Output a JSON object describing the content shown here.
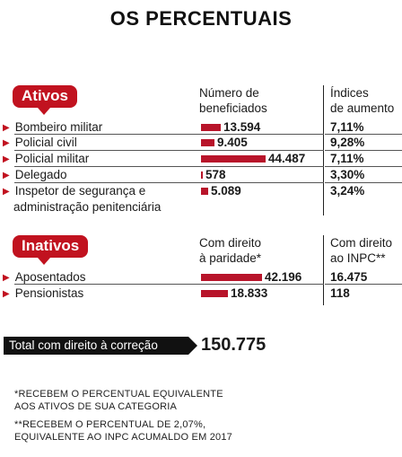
{
  "title": "OS PERCENTUAIS",
  "ativos": {
    "badge": "Ativos",
    "header_beneficiados": [
      "Número de",
      "beneficiados"
    ],
    "header_indices": [
      "Índices",
      "de aumento"
    ],
    "rows": [
      {
        "label": "Bombeiro militar",
        "value": 13594,
        "value_text": "13.594",
        "index": "7,11%"
      },
      {
        "label": "Policial civil",
        "value": 9405,
        "value_text": "9.405",
        "index": "9,28%"
      },
      {
        "label": "Policial militar",
        "value": 44487,
        "value_text": "44.487",
        "index": "7,11%"
      },
      {
        "label": "Delegado",
        "value": 578,
        "value_text": "578",
        "index": "3,30%"
      },
      {
        "label": "Inspetor de segurança e administração penitenciária",
        "label_line1": "Inspetor de segurança e",
        "label_line2": "administração penitenciária",
        "value": 5089,
        "value_text": "5.089",
        "index": "3,24%"
      }
    ]
  },
  "inativos": {
    "badge": "Inativos",
    "header_paridade": [
      "Com direito",
      "à paridade*"
    ],
    "header_inpc": [
      "Com direito",
      "ao INPC**"
    ],
    "rows": [
      {
        "label": "Aposentados",
        "paridade": 42196,
        "paridade_text": "42.196",
        "inpc": "16.475"
      },
      {
        "label": "Pensionistas",
        "paridade": 18833,
        "paridade_text": "18.833",
        "inpc": "118"
      }
    ]
  },
  "total": {
    "label": "Total com direito à correção",
    "value": "150.775"
  },
  "notes": [
    [
      "*RECEBEM O PERCENTUAL EQUIVALENTE",
      "AOS ATIVOS DE SUA CATEGORIA"
    ],
    [
      "**RECEBEM O PERCENTUAL DE 2,07%,",
      "EQUIVALENTE AO INPC ACUMALDO EM 2017"
    ]
  ],
  "colors": {
    "accent": "#c1121f",
    "bar": "#b8142a",
    "total_box": "#111111"
  },
  "chart_data": {
    "type": "bar",
    "orientation": "horizontal",
    "title": "OS PERCENTUAIS",
    "groups": [
      {
        "name": "Ativos",
        "categories": [
          "Bombeiro militar",
          "Policial civil",
          "Policial militar",
          "Delegado",
          "Inspetor de segurança e administração penitenciária"
        ],
        "series": [
          {
            "name": "Número de beneficiados",
            "values": [
              13594,
              9405,
              44487,
              578,
              5089
            ]
          },
          {
            "name": "Índices de aumento",
            "values": [
              "7,11%",
              "9,28%",
              "7,11%",
              "3,30%",
              "3,24%"
            ]
          }
        ]
      },
      {
        "name": "Inativos",
        "categories": [
          "Aposentados",
          "Pensionistas"
        ],
        "series": [
          {
            "name": "Com direito à paridade*",
            "values": [
              42196,
              18833
            ]
          },
          {
            "name": "Com direito ao INPC**",
            "values": [
              16475,
              118
            ]
          }
        ]
      }
    ],
    "total": 150775
  }
}
